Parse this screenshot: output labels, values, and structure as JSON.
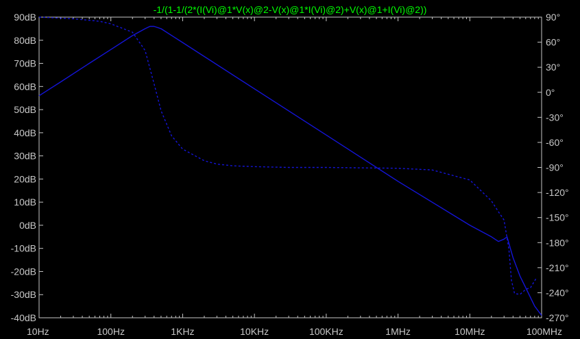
{
  "chart_data": {
    "type": "line",
    "title": "-1/(1-1/(2*(I(Vi)@1*V(x)@2-V(x)@1*I(Vi)@2)+V(x)@1+I(Vi)@2))",
    "xscale": "log",
    "xlim": [
      10,
      100000000
    ],
    "ylim_left": [
      -40,
      90
    ],
    "ylim_right": [
      -270,
      90
    ],
    "x_ticks": [
      "10Hz",
      "100Hz",
      "1KHz",
      "10KHz",
      "100KHz",
      "1MHz",
      "10MHz",
      "100MHz"
    ],
    "y_ticks_left": [
      "90dB",
      "80dB",
      "70dB",
      "60dB",
      "50dB",
      "40dB",
      "30dB",
      "20dB",
      "10dB",
      "0dB",
      "-10dB",
      "-20dB",
      "-30dB",
      "-40dB"
    ],
    "y_ticks_right": [
      "90°",
      "60°",
      "30°",
      "0°",
      "-30°",
      "-60°",
      "-90°",
      "-120°",
      "-150°",
      "-180°",
      "-210°",
      "-240°",
      "-270°"
    ],
    "grid": false,
    "line_color": "#1414d8",
    "series": [
      {
        "axis": "left",
        "style": "solid",
        "x": [
          10,
          20,
          50,
          100,
          200,
          300,
          350,
          400,
          500,
          1000,
          10000,
          100000,
          1000000,
          10000000,
          20000000,
          25000000,
          30000000,
          33000000,
          40000000,
          50000000,
          60000000,
          80000000,
          100000000
        ],
        "y": [
          56,
          62,
          70,
          76,
          82,
          85,
          86,
          86,
          85,
          79,
          59,
          39,
          19,
          0,
          -5,
          -7,
          -6,
          -5,
          -14,
          -22,
          -27,
          -35,
          -39
        ]
      },
      {
        "axis": "right",
        "style": "dashed",
        "x": [
          10,
          30,
          70,
          100,
          200,
          300,
          400,
          500,
          700,
          1000,
          2000,
          3000,
          5000,
          10000,
          30000,
          100000,
          1000000,
          3000000,
          10000000,
          20000000,
          25000000,
          30000000,
          35000000,
          38000000,
          42000000,
          50000000,
          60000000,
          70000000,
          85000000
        ],
        "y": [
          90,
          88,
          85,
          82,
          72,
          50,
          10,
          -22,
          -52,
          -68,
          -82,
          -86,
          -88,
          -89,
          -90,
          -90,
          -91,
          -93,
          -105,
          -130,
          -143,
          -153,
          -188,
          -225,
          -241,
          -242,
          -236,
          -234,
          -222
        ]
      }
    ]
  }
}
